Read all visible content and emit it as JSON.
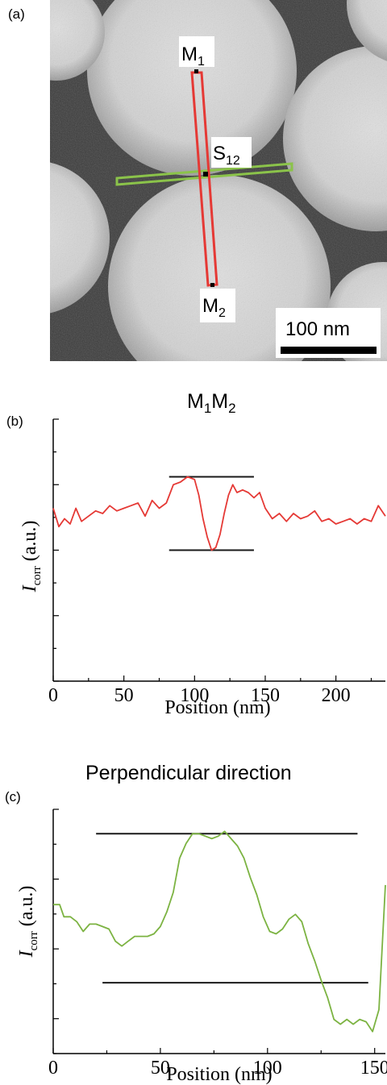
{
  "panel_a": {
    "label": "(a)",
    "marker_m1": "M",
    "marker_m1_sub": "1",
    "marker_m2": "M",
    "marker_m2_sub": "2",
    "marker_s12": "S",
    "marker_s12_sub": "12",
    "scale_bar_label": "100 nm",
    "colors": {
      "profile_line": "#e53935",
      "perp_line": "#8bc34a"
    }
  },
  "chart_data": [
    {
      "panel_label": "(b)",
      "type": "line",
      "title_main": "M",
      "title_sub1": "1",
      "title_main2": "M",
      "title_sub2": "2",
      "xlabel": "Position (nm)",
      "ylabel_main": "I",
      "ylabel_sub": "corr",
      "ylabel_unit": "(a.u.)",
      "xlim": [
        0,
        235
      ],
      "ylim": [
        0,
        10
      ],
      "x_ticks": [
        0,
        50,
        100,
        150,
        200
      ],
      "color": "#e53935",
      "series": [
        {
          "x": [
            0,
            4,
            8,
            12,
            16,
            20,
            25,
            30,
            35,
            40,
            45,
            50,
            55,
            60,
            65,
            70,
            75,
            80,
            85,
            90,
            95,
            100,
            103,
            106,
            109,
            112,
            115,
            118,
            121,
            124,
            127,
            130,
            134,
            138,
            142,
            146,
            150,
            155,
            160,
            165,
            170,
            175,
            180,
            185,
            190,
            195,
            200,
            205,
            210,
            215,
            220,
            225,
            230,
            235
          ],
          "y": [
            6.6,
            5.9,
            6.2,
            6.0,
            6.6,
            6.1,
            6.3,
            6.5,
            6.4,
            6.7,
            6.5,
            6.6,
            6.7,
            6.8,
            6.3,
            6.9,
            6.6,
            6.8,
            7.5,
            7.6,
            7.8,
            7.7,
            7.1,
            6.2,
            5.5,
            5.0,
            5.1,
            5.6,
            6.4,
            7.1,
            7.5,
            7.2,
            7.3,
            7.2,
            7.0,
            7.2,
            6.6,
            6.2,
            6.4,
            6.1,
            6.4,
            6.2,
            6.3,
            6.5,
            6.1,
            6.2,
            6.0,
            6.1,
            6.2,
            6.0,
            6.2,
            6.1,
            6.7,
            6.3
          ]
        }
      ],
      "reference_lines": [
        {
          "y": 7.8,
          "x_start": 82,
          "x_end": 142
        },
        {
          "y": 5.0,
          "x_start": 82,
          "x_end": 142
        }
      ]
    },
    {
      "panel_label": "(c)",
      "type": "line",
      "title": "Perpendicular direction",
      "xlabel": "Position (nm)",
      "ylabel_main": "I",
      "ylabel_sub": "corr",
      "ylabel_unit": "(a.u.)",
      "xlim": [
        0,
        155
      ],
      "ylim": [
        0,
        10
      ],
      "x_ticks": [
        0,
        50,
        100,
        150
      ],
      "color": "#7cb342",
      "series": [
        {
          "x": [
            0,
            3,
            5,
            8,
            11,
            14,
            17,
            20,
            23,
            26,
            29,
            32,
            35,
            38,
            41,
            44,
            47,
            50,
            53,
            56,
            59,
            62,
            65,
            68,
            71,
            74,
            77,
            80,
            83,
            86,
            89,
            92,
            95,
            98,
            101,
            104,
            107,
            110,
            113,
            116,
            119,
            122,
            125,
            128,
            131,
            134,
            137,
            140,
            143,
            146,
            149,
            152,
            155
          ],
          "y": [
            6.1,
            6.1,
            5.6,
            5.6,
            5.4,
            5.0,
            5.3,
            5.3,
            5.2,
            5.1,
            4.6,
            4.4,
            4.6,
            4.8,
            4.8,
            4.8,
            4.9,
            5.2,
            5.8,
            6.6,
            8.0,
            8.6,
            9.0,
            9.0,
            8.9,
            8.8,
            8.9,
            9.1,
            8.8,
            8.5,
            8.0,
            7.2,
            6.5,
            5.6,
            5.0,
            4.9,
            5.1,
            5.5,
            5.7,
            5.4,
            4.5,
            3.8,
            3.0,
            2.3,
            1.4,
            1.2,
            1.4,
            1.2,
            1.4,
            1.3,
            0.9,
            1.8,
            6.9
          ]
        }
      ],
      "reference_lines": [
        {
          "y": 9.0,
          "x_start": 20,
          "x_end": 142
        },
        {
          "y": 2.9,
          "x_start": 23,
          "x_end": 147
        }
      ]
    }
  ]
}
